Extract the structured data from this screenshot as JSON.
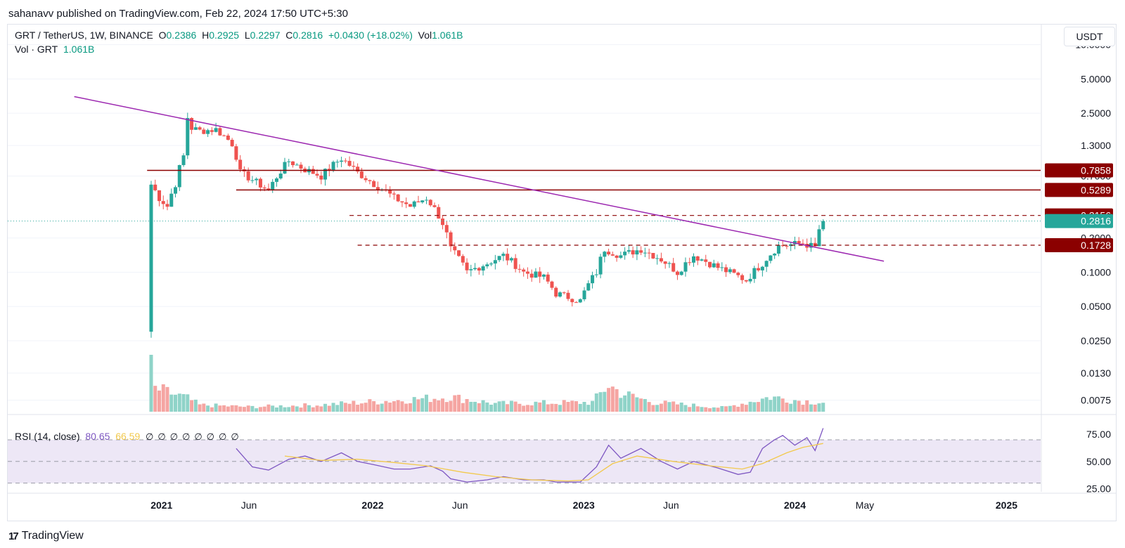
{
  "header": {
    "published_by": "sahanavv published on TradingView.com, Feb 22, 2024 17:50 UTC+5:30"
  },
  "legend": {
    "symbol": "GRT / TetherUS, 1W, BINANCE",
    "open_label": "O",
    "open": "0.2386",
    "high_label": "H",
    "high": "0.2925",
    "low_label": "L",
    "low": "0.2297",
    "close_label": "C",
    "close": "0.2816",
    "change": "+0.0430 (+18.02%)",
    "vol_label": "Vol",
    "vol": "1.061B",
    "vol_row_label": "Vol · GRT",
    "vol_row_value": "1.061B"
  },
  "rsi_legend": {
    "label": "RSI (14, close)",
    "rsi_value": "80.65",
    "ma_value": "66.59",
    "na_markers": [
      "∅",
      "∅",
      "∅",
      "∅",
      "∅",
      "∅",
      "∅",
      "∅"
    ]
  },
  "currency": "USDT",
  "footer": {
    "brand": "TradingView",
    "logo_mark": "17"
  },
  "colors": {
    "up": "#26a69a",
    "down": "#ef5350",
    "vol_up": "#8fd3c8",
    "vol_down": "#f5a5a2",
    "trendline": "#9c27b0",
    "resistance": "#8b0000",
    "rsi": "#7e57c2",
    "rsi_ma": "#f2c94c",
    "rsi_band": "#ede7f6"
  },
  "chart_data": [
    {
      "type": "candlestick",
      "name": "GRT / TetherUS weekly price",
      "y_scale": "log",
      "ylim": [
        0.0062,
        14
      ],
      "xlim": [
        "2020-04-10",
        "2025-03-01"
      ],
      "y_ticks": [
        {
          "value": 10.0,
          "label": "10.0000"
        },
        {
          "value": 5.0,
          "label": "5.0000"
        },
        {
          "value": 2.5,
          "label": "2.5000"
        },
        {
          "value": 1.3,
          "label": "1.3000"
        },
        {
          "value": 0.7,
          "label": "0.7000"
        },
        {
          "value": 0.2,
          "label": "0.2000"
        },
        {
          "value": 0.1,
          "label": "0.1000"
        },
        {
          "value": 0.05,
          "label": "0.0500"
        },
        {
          "value": 0.025,
          "label": "0.0250"
        },
        {
          "value": 0.013,
          "label": "0.0130"
        },
        {
          "value": 0.0075,
          "label": "0.0075"
        }
      ],
      "x_ticks": [
        {
          "date": "2021-01-01",
          "label": "2021",
          "bold": true
        },
        {
          "date": "2021-06-01",
          "label": "Jun",
          "bold": false
        },
        {
          "date": "2022-01-01",
          "label": "2022",
          "bold": true
        },
        {
          "date": "2022-06-01",
          "label": "Jun",
          "bold": false
        },
        {
          "date": "2023-01-01",
          "label": "2023",
          "bold": true
        },
        {
          "date": "2023-06-01",
          "label": "Jun",
          "bold": false
        },
        {
          "date": "2024-01-01",
          "label": "2024",
          "bold": true
        },
        {
          "date": "2024-05-01",
          "label": "May",
          "bold": false
        },
        {
          "date": "2025-01-01",
          "label": "2025",
          "bold": true
        }
      ],
      "price_key_points": [
        [
          "2020-12-14",
          0.59
        ],
        [
          "2020-12-28",
          0.45
        ],
        [
          "2021-01-11",
          0.38
        ],
        [
          "2021-01-25",
          0.6
        ],
        [
          "2021-02-08",
          1.05
        ],
        [
          "2021-02-15",
          2.3
        ],
        [
          "2021-02-22",
          1.85
        ],
        [
          "2021-03-08",
          1.75
        ],
        [
          "2021-04-05",
          1.8
        ],
        [
          "2021-05-03",
          1.35
        ],
        [
          "2021-05-17",
          0.75
        ],
        [
          "2021-06-07",
          0.65
        ],
        [
          "2021-07-05",
          0.52
        ],
        [
          "2021-08-09",
          0.95
        ],
        [
          "2021-09-06",
          0.8
        ],
        [
          "2021-10-04",
          0.7
        ],
        [
          "2021-11-08",
          1.0
        ],
        [
          "2021-12-06",
          0.75
        ],
        [
          "2022-01-03",
          0.6
        ],
        [
          "2022-02-07",
          0.45
        ],
        [
          "2022-03-07",
          0.38
        ],
        [
          "2022-04-04",
          0.45
        ],
        [
          "2022-05-02",
          0.27
        ],
        [
          "2022-05-16",
          0.16
        ],
        [
          "2022-06-13",
          0.1
        ],
        [
          "2022-07-18",
          0.12
        ],
        [
          "2022-08-15",
          0.14
        ],
        [
          "2022-09-19",
          0.1
        ],
        [
          "2022-10-24",
          0.09
        ],
        [
          "2022-11-14",
          0.065
        ],
        [
          "2022-12-26",
          0.056
        ],
        [
          "2023-01-23",
          0.1
        ],
        [
          "2023-02-06",
          0.16
        ],
        [
          "2023-03-06",
          0.14
        ],
        [
          "2023-04-10",
          0.16
        ],
        [
          "2023-05-15",
          0.13
        ],
        [
          "2023-06-12",
          0.1
        ],
        [
          "2023-07-10",
          0.14
        ],
        [
          "2023-08-21",
          0.11
        ],
        [
          "2023-10-09",
          0.085
        ],
        [
          "2023-11-06",
          0.12
        ],
        [
          "2023-12-04",
          0.17
        ],
        [
          "2024-01-15",
          0.18
        ],
        [
          "2024-02-05",
          0.165
        ],
        [
          "2024-02-12",
          0.2386
        ],
        [
          "2024-02-19",
          0.2816
        ]
      ],
      "last_candle": {
        "date": "2024-02-19",
        "open": 0.2386,
        "high": 0.2925,
        "low": 0.2297,
        "close": 0.2816
      },
      "volume_key_points": [
        [
          "2020-12-14",
          0.9
        ],
        [
          "2021-02-15",
          0.5
        ],
        [
          "2021-03-08",
          0.25
        ],
        [
          "2021-06-01",
          0.18
        ],
        [
          "2021-10-01",
          0.25
        ],
        [
          "2022-05-16",
          0.55
        ],
        [
          "2022-08-01",
          0.3
        ],
        [
          "2023-01-16",
          0.35
        ],
        [
          "2023-02-13",
          1.0
        ],
        [
          "2023-03-06",
          0.7
        ],
        [
          "2023-05-01",
          0.35
        ],
        [
          "2023-09-01",
          0.15
        ],
        [
          "2023-11-20",
          0.55
        ],
        [
          "2024-01-15",
          0.4
        ],
        [
          "2024-02-19",
          0.35
        ]
      ],
      "horizontal_levels": [
        {
          "value": 0.7858,
          "label": "0.7858",
          "style": "solid",
          "from": "2020-12-07"
        },
        {
          "value": 0.5289,
          "label": "0.5289",
          "style": "solid",
          "from": "2021-05-10"
        },
        {
          "value": 0.3156,
          "label": "0.3156",
          "style": "dashed",
          "from": "2021-11-22"
        },
        {
          "value": 0.1728,
          "label": "0.1728",
          "style": "dashed",
          "from": "2021-12-06"
        }
      ],
      "current_price": {
        "value": 0.2816,
        "label": "0.2816"
      },
      "trendline": {
        "from": [
          "2020-08-03",
          3.5
        ],
        "to": [
          "2024-06-03",
          0.125
        ]
      }
    },
    {
      "type": "line",
      "name": "RSI (14, close)",
      "ylim": [
        22,
        92
      ],
      "y_ticks": [
        {
          "value": 75,
          "label": "75.00"
        },
        {
          "value": 50,
          "label": "50.00"
        },
        {
          "value": 25,
          "label": "25.00"
        }
      ],
      "band": [
        30,
        70
      ],
      "series": [
        {
          "key": "rsi",
          "points": [
            [
              "2021-05-10",
              62
            ],
            [
              "2021-06-07",
              45
            ],
            [
              "2021-07-05",
              42
            ],
            [
              "2021-08-09",
              52
            ],
            [
              "2021-09-06",
              55
            ],
            [
              "2021-10-04",
              50
            ],
            [
              "2021-11-08",
              58
            ],
            [
              "2021-12-06",
              50
            ],
            [
              "2022-01-03",
              47
            ],
            [
              "2022-02-07",
              43
            ],
            [
              "2022-03-07",
              43
            ],
            [
              "2022-04-11",
              46
            ],
            [
              "2022-05-02",
              41
            ],
            [
              "2022-05-16",
              34
            ],
            [
              "2022-06-13",
              31
            ],
            [
              "2022-07-18",
              33
            ],
            [
              "2022-08-15",
              36
            ],
            [
              "2022-09-19",
              33
            ],
            [
              "2022-10-24",
              33
            ],
            [
              "2022-11-14",
              31
            ],
            [
              "2022-12-26",
              31
            ],
            [
              "2023-01-23",
              45
            ],
            [
              "2023-02-13",
              65
            ],
            [
              "2023-03-06",
              53
            ],
            [
              "2023-04-10",
              62
            ],
            [
              "2023-05-15",
              50
            ],
            [
              "2023-06-12",
              43
            ],
            [
              "2023-07-10",
              50
            ],
            [
              "2023-08-21",
              44
            ],
            [
              "2023-09-25",
              38
            ],
            [
              "2023-10-16",
              40
            ],
            [
              "2023-11-06",
              62
            ],
            [
              "2023-11-27",
              70
            ],
            [
              "2023-12-11",
              74
            ],
            [
              "2024-01-01",
              65
            ],
            [
              "2024-01-22",
              72
            ],
            [
              "2024-02-05",
              60
            ],
            [
              "2024-02-19",
              80.65
            ]
          ]
        },
        {
          "key": "rsi_ma",
          "points": [
            [
              "2021-08-02",
              55
            ],
            [
              "2021-10-04",
              51
            ],
            [
              "2021-12-06",
              52
            ],
            [
              "2022-02-07",
              49
            ],
            [
              "2022-04-04",
              46
            ],
            [
              "2022-06-06",
              40
            ],
            [
              "2022-08-01",
              36
            ],
            [
              "2022-10-03",
              33
            ],
            [
              "2022-12-05",
              32
            ],
            [
              "2023-01-09",
              33
            ],
            [
              "2023-02-20",
              48
            ],
            [
              "2023-04-03",
              55
            ],
            [
              "2023-06-05",
              50
            ],
            [
              "2023-08-07",
              46
            ],
            [
              "2023-10-02",
              43
            ],
            [
              "2023-11-06",
              48
            ],
            [
              "2023-12-18",
              58
            ],
            [
              "2024-01-15",
              63
            ],
            [
              "2024-02-19",
              66.59
            ]
          ]
        }
      ]
    }
  ]
}
